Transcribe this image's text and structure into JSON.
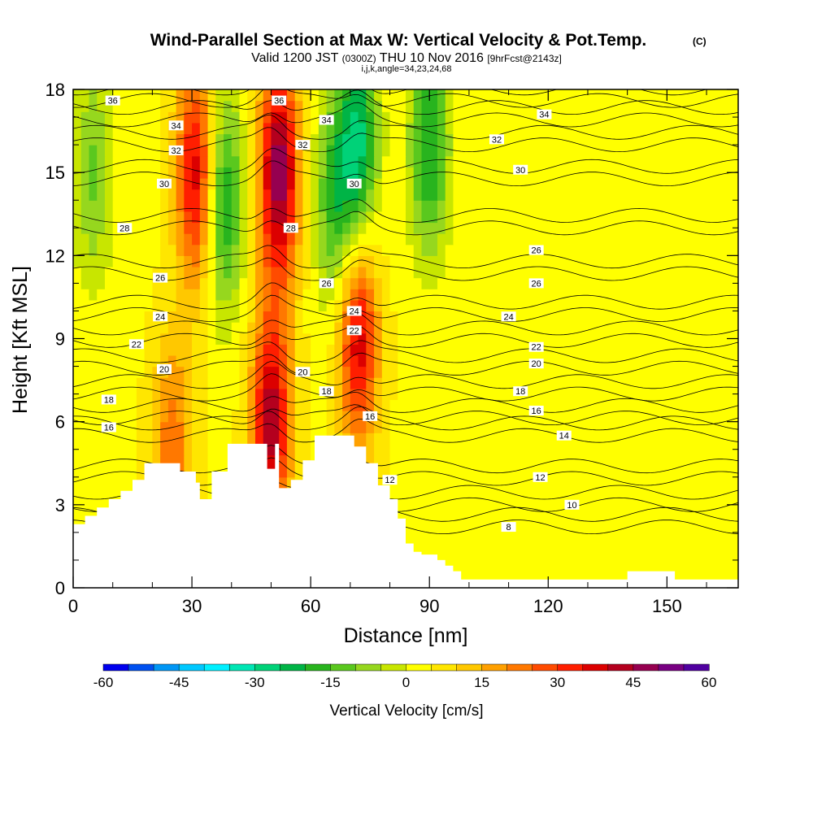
{
  "chart_data": {
    "type": "heatmap",
    "title": "Wind-Parallel Section at Max W: Vertical Velocity & Pot.Temp.",
    "title_unit": "(C)",
    "subtitle_parts": [
      "Valid 1200 JST",
      "(0300Z)",
      "THU 10 Nov 2016",
      "[9hrFcst@2143z]"
    ],
    "subtitle2": "i,j,k,angle=34,23,24,68",
    "xlabel": "Distance [nm]",
    "ylabel": "Height [Kft MSL]",
    "xlim": [
      0,
      168
    ],
    "ylim": [
      0,
      18
    ],
    "x_ticks": [
      0,
      30,
      60,
      90,
      120,
      150
    ],
    "y_ticks": [
      0,
      3,
      6,
      9,
      12,
      15,
      18
    ],
    "colorbar": {
      "label": "Vertical Velocity [cm/s]",
      "ticks": [
        -60,
        -45,
        -30,
        -15,
        0,
        15,
        30,
        45,
        60
      ],
      "colors": [
        "#0000ee",
        "#0050f0",
        "#0096f5",
        "#00c8ff",
        "#00f0ff",
        "#00e6b4",
        "#00d278",
        "#00b446",
        "#28b41e",
        "#5ac81e",
        "#96d71e",
        "#c8e600",
        "#ffff00",
        "#ffe600",
        "#ffc800",
        "#ffa000",
        "#ff7800",
        "#ff4b00",
        "#ff1e00",
        "#dc0000",
        "#b4001e",
        "#960050",
        "#780082",
        "#5000a0"
      ],
      "range": [
        -60,
        60
      ]
    },
    "terrain_kft": [
      [
        0,
        2.3
      ],
      [
        3,
        2.3
      ],
      [
        3,
        2.6
      ],
      [
        6,
        2.6
      ],
      [
        6,
        2.9
      ],
      [
        9,
        2.9
      ],
      [
        9,
        3.2
      ],
      [
        12,
        3.2
      ],
      [
        12,
        3.5
      ],
      [
        15,
        3.5
      ],
      [
        15,
        3.9
      ],
      [
        18,
        3.9
      ],
      [
        18,
        4.5
      ],
      [
        27,
        4.5
      ],
      [
        27,
        4.2
      ],
      [
        31,
        4.2
      ],
      [
        31,
        3.8
      ],
      [
        32,
        3.8
      ],
      [
        32,
        3.2
      ],
      [
        35,
        3.2
      ],
      [
        35,
        4.2
      ],
      [
        39,
        4.2
      ],
      [
        39,
        5.2
      ],
      [
        49,
        5.2
      ],
      [
        49,
        4.3
      ],
      [
        51,
        4.3
      ],
      [
        51,
        5.2
      ],
      [
        52,
        5.2
      ],
      [
        52,
        3.6
      ],
      [
        55,
        3.6
      ],
      [
        55,
        3.9
      ],
      [
        58,
        3.9
      ],
      [
        58,
        4.6
      ],
      [
        61,
        4.6
      ],
      [
        61,
        5.5
      ],
      [
        71,
        5.5
      ],
      [
        71,
        5.1
      ],
      [
        74,
        5.1
      ],
      [
        74,
        4.5
      ],
      [
        77,
        4.5
      ],
      [
        77,
        3.7
      ],
      [
        80,
        3.7
      ],
      [
        80,
        3.2
      ],
      [
        82,
        3.2
      ],
      [
        82,
        2.5
      ],
      [
        84,
        2.5
      ],
      [
        84,
        1.6
      ],
      [
        86,
        1.6
      ],
      [
        86,
        1.3
      ],
      [
        88,
        1.3
      ],
      [
        88,
        1.2
      ],
      [
        92,
        1.2
      ],
      [
        92,
        1.0
      ],
      [
        94,
        1.0
      ],
      [
        94,
        0.8
      ],
      [
        96,
        0.8
      ],
      [
        96,
        0.6
      ],
      [
        98,
        0.6
      ],
      [
        98,
        0.3
      ],
      [
        140,
        0.3
      ],
      [
        140,
        0.6
      ],
      [
        152,
        0.6
      ],
      [
        152,
        0.3
      ],
      [
        168,
        0.3
      ],
      [
        168,
        0
      ]
    ],
    "w_features_cm_s": [
      {
        "x": 52,
        "y": 15,
        "w": 45
      },
      {
        "x": 50,
        "y": 6,
        "w": 40
      },
      {
        "x": 31,
        "y": 15,
        "w": 35
      },
      {
        "x": 72,
        "y": 9,
        "w": 35
      },
      {
        "x": 38,
        "y": 14,
        "w": -25
      },
      {
        "x": 66,
        "y": 14,
        "w": -20
      },
      {
        "x": 72,
        "y": 16,
        "w": -30
      },
      {
        "x": 90,
        "y": 16,
        "w": -25
      },
      {
        "x": 5,
        "y": 15,
        "w": -15
      },
      {
        "x": 25,
        "y": 5,
        "w": 20
      }
    ],
    "theta_contours_c": [
      {
        "v": 8,
        "label_x": 110,
        "label_y": 2.2
      },
      {
        "v": 10,
        "label_x": 126,
        "label_y": 3.0
      },
      {
        "v": 12,
        "label_x": 80,
        "label_y": 3.9
      },
      {
        "v": 12,
        "label_x": 118,
        "label_y": 4.0
      },
      {
        "v": 14,
        "label_x": 124,
        "label_y": 5.5
      },
      {
        "v": 16,
        "label_x": 9,
        "label_y": 5.8
      },
      {
        "v": 16,
        "label_x": 75,
        "label_y": 6.2
      },
      {
        "v": 16,
        "label_x": 117,
        "label_y": 6.4
      },
      {
        "v": 18,
        "label_x": 9,
        "label_y": 6.8
      },
      {
        "v": 18,
        "label_x": 64,
        "label_y": 7.1
      },
      {
        "v": 18,
        "label_x": 113,
        "label_y": 7.1
      },
      {
        "v": 20,
        "label_x": 23,
        "label_y": 7.9
      },
      {
        "v": 20,
        "label_x": 58,
        "label_y": 7.8
      },
      {
        "v": 20,
        "label_x": 117,
        "label_y": 8.1
      },
      {
        "v": 22,
        "label_x": 16,
        "label_y": 8.8
      },
      {
        "v": 22,
        "label_x": 71,
        "label_y": 9.3
      },
      {
        "v": 22,
        "label_x": 117,
        "label_y": 8.7
      },
      {
        "v": 24,
        "label_x": 22,
        "label_y": 9.8
      },
      {
        "v": 24,
        "label_x": 71,
        "label_y": 10.0
      },
      {
        "v": 24,
        "label_x": 110,
        "label_y": 9.8
      },
      {
        "v": 26,
        "label_x": 22,
        "label_y": 11.2
      },
      {
        "v": 26,
        "label_x": 64,
        "label_y": 11.0
      },
      {
        "v": 26,
        "label_x": 117,
        "label_y": 11.0
      },
      {
        "v": 26,
        "label_x": 117,
        "label_y": 12.2
      },
      {
        "v": 28,
        "label_x": 13,
        "label_y": 13.0
      },
      {
        "v": 28,
        "label_x": 55,
        "label_y": 13.0
      },
      {
        "v": 30,
        "label_x": 23,
        "label_y": 14.6
      },
      {
        "v": 30,
        "label_x": 71,
        "label_y": 14.6
      },
      {
        "v": 30,
        "label_x": 113,
        "label_y": 15.1
      },
      {
        "v": 32,
        "label_x": 26,
        "label_y": 15.8
      },
      {
        "v": 32,
        "label_x": 58,
        "label_y": 16.0
      },
      {
        "v": 32,
        "label_x": 107,
        "label_y": 16.2
      },
      {
        "v": 34,
        "label_x": 26,
        "label_y": 16.7
      },
      {
        "v": 34,
        "label_x": 64,
        "label_y": 16.9
      },
      {
        "v": 34,
        "label_x": 119,
        "label_y": 17.1
      },
      {
        "v": 36,
        "label_x": 10,
        "label_y": 17.6
      },
      {
        "v": 36,
        "label_x": 52,
        "label_y": 17.6
      }
    ]
  }
}
